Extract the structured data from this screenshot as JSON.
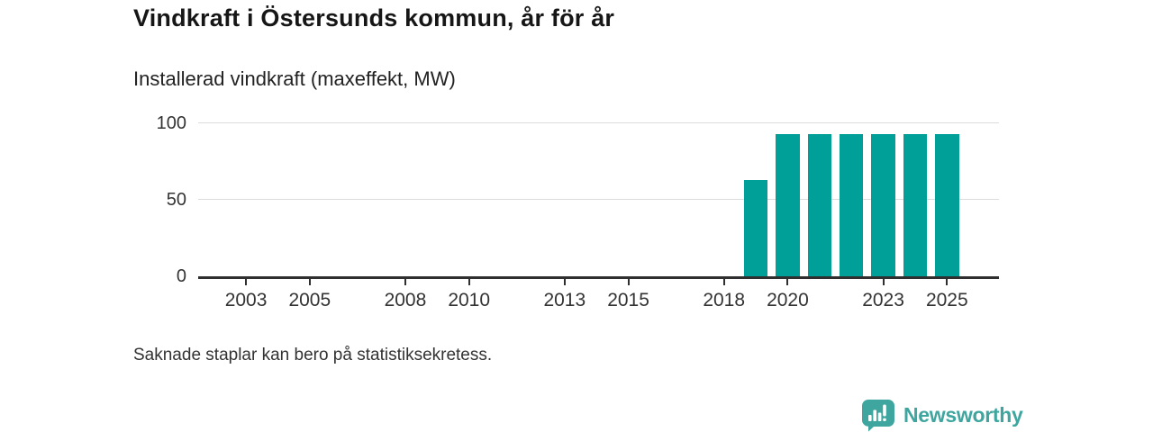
{
  "header": {
    "title": "Vindkraft i Östersunds kommun, år för år",
    "subtitle": "Installerad vindkraft (maxeffekt, MW)"
  },
  "footnote": "Saknade staplar kan bero på statistiksekretess.",
  "logo": {
    "text": "Newsworthy",
    "icon": "newsworthy-speech-bubble-bar-chart-icon"
  },
  "colors": {
    "bar": "#00A099",
    "logo_teal": "#3EA69F",
    "axis": "#2F2F2F",
    "grid": "#DCDCDC",
    "text": "#333333",
    "title_text": "#161616"
  },
  "chart_data": {
    "type": "bar",
    "title": "Vindkraft i Östersunds kommun, år för år",
    "subtitle": "Installerad vindkraft (maxeffekt, MW)",
    "xlabel": "",
    "ylabel": "Installerad vindkraft (maxeffekt, MW)",
    "x": [
      2002,
      2003,
      2004,
      2005,
      2006,
      2007,
      2008,
      2009,
      2010,
      2011,
      2012,
      2013,
      2014,
      2015,
      2016,
      2017,
      2018,
      2019,
      2020,
      2021,
      2022,
      2023,
      2024,
      2025
    ],
    "values": [
      null,
      null,
      null,
      null,
      null,
      null,
      null,
      null,
      null,
      null,
      null,
      null,
      null,
      null,
      null,
      null,
      null,
      63,
      93,
      93,
      93,
      93,
      93,
      93
    ],
    "missing_values_note": "Saknade staplar kan bero på statistiksekretess.",
    "yticks": [
      0,
      50,
      100
    ],
    "xticks": [
      2003,
      2005,
      2008,
      2010,
      2013,
      2015,
      2018,
      2020,
      2023,
      2025
    ],
    "ylim": [
      0,
      100
    ],
    "grid": "horizontal",
    "legend": false
  }
}
